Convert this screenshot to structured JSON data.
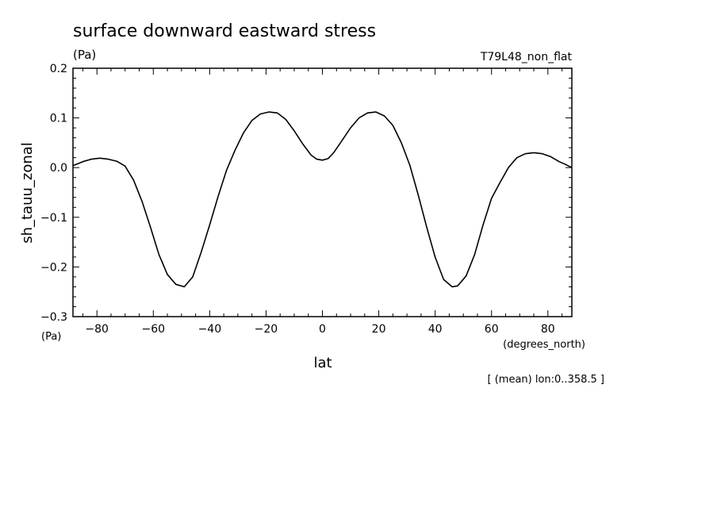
{
  "chart_data": {
    "type": "line",
    "title": "surface downward eastward stress",
    "title_units": "(Pa)",
    "experiment": "T79L48_non_flat",
    "xlabel": "lat",
    "x_units": "(degrees_north)",
    "ylabel": "sh_tauu_zonal",
    "y_units": "(Pa)",
    "footnote": "[ (mean) lon:0..358.5 ]",
    "xlim": [
      -88.5,
      88.5
    ],
    "ylim": [
      -0.3,
      0.2
    ],
    "xticks": [
      -80,
      -60,
      -40,
      -20,
      0,
      20,
      40,
      60,
      80
    ],
    "xtick_labels": [
      "−80",
      "−60",
      "−40",
      "−20",
      "0",
      "20",
      "40",
      "60",
      "80"
    ],
    "yticks": [
      -0.3,
      -0.2,
      -0.1,
      0.0,
      0.1,
      0.2
    ],
    "ytick_labels": [
      "−0.3",
      "−0.2",
      "−0.1",
      "0.0",
      "0.1",
      "0.2"
    ],
    "grid": false,
    "color": "#000000",
    "series": [
      {
        "x": [
          -88.5,
          -85,
          -82,
          -79,
          -76,
          -73,
          -70,
          -67,
          -64,
          -61,
          -58,
          -55,
          -52,
          -49,
          -46,
          -43,
          -40,
          -37,
          -34,
          -31,
          -28,
          -25,
          -22,
          -19,
          -16,
          -13,
          -10,
          -7,
          -4,
          -2,
          0,
          2,
          4,
          7,
          10,
          13,
          16,
          19,
          22,
          25,
          28,
          31,
          34,
          37,
          40,
          43,
          46,
          48,
          51,
          54,
          57,
          60,
          63,
          66,
          69,
          72,
          75,
          78,
          81,
          84,
          86,
          88.5
        ],
        "y": [
          0.004,
          0.012,
          0.017,
          0.019,
          0.017,
          0.013,
          0.003,
          -0.025,
          -0.068,
          -0.12,
          -0.175,
          -0.215,
          -0.235,
          -0.24,
          -0.22,
          -0.17,
          -0.115,
          -0.058,
          -0.005,
          0.035,
          0.07,
          0.095,
          0.108,
          0.112,
          0.11,
          0.097,
          0.074,
          0.048,
          0.025,
          0.017,
          0.015,
          0.018,
          0.03,
          0.055,
          0.08,
          0.1,
          0.11,
          0.112,
          0.104,
          0.085,
          0.05,
          0.005,
          -0.055,
          -0.12,
          -0.18,
          -0.225,
          -0.24,
          -0.238,
          -0.218,
          -0.175,
          -0.115,
          -0.062,
          -0.03,
          0.0,
          0.02,
          0.028,
          0.03,
          0.028,
          0.022,
          0.012,
          0.007,
          0.0
        ]
      }
    ]
  }
}
